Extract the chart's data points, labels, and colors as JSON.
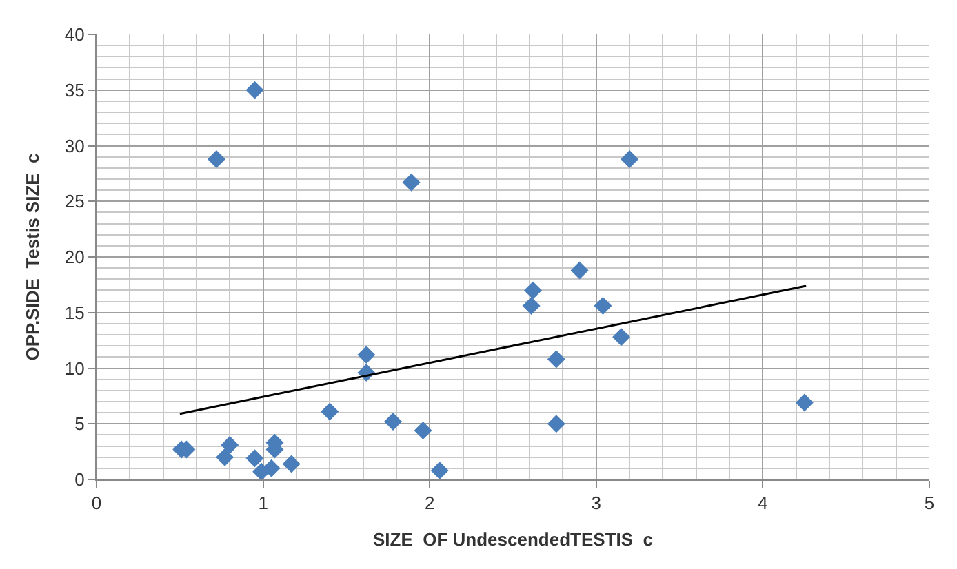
{
  "chart_data": {
    "type": "scatter",
    "xlabel": "SIZE  OF UndescendedTESTIS  c",
    "ylabel": "OPP.SIDE  Testis SIZE  c",
    "xlim": [
      0,
      5
    ],
    "xticks": [
      0,
      1,
      2,
      3,
      4,
      5
    ],
    "ylim": [
      0,
      40
    ],
    "yticks": [
      0,
      5,
      10,
      15,
      20,
      25,
      30,
      35,
      40
    ],
    "grid": true,
    "series": [
      {
        "color": "#4a7ebb",
        "marker": "diamond",
        "x": [
          0.51,
          0.54,
          0.72,
          0.77,
          0.8,
          0.95,
          0.95,
          0.99,
          1.05,
          1.07,
          1.07,
          1.17,
          1.4,
          1.62,
          1.62,
          1.78,
          1.89,
          1.96,
          2.06,
          2.61,
          2.62,
          2.76,
          2.76,
          2.9,
          3.04,
          3.15,
          3.2,
          4.25
        ],
        "values": [
          2.7,
          2.7,
          28.8,
          2.0,
          3.1,
          35.0,
          1.9,
          0.7,
          1.0,
          3.3,
          2.7,
          1.4,
          6.1,
          11.2,
          9.6,
          5.2,
          26.7,
          4.4,
          0.8,
          15.6,
          17.0,
          10.8,
          5.0,
          18.8,
          15.6,
          12.8,
          28.8,
          6.9
        ]
      },
      {
        "type": "line",
        "color": "#000000",
        "marker": "none",
        "x": [
          0.5,
          4.26
        ],
        "values": [
          5.9,
          17.4
        ]
      }
    ]
  }
}
